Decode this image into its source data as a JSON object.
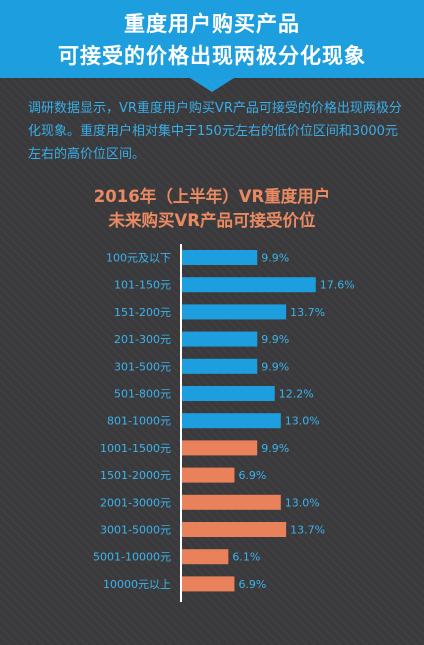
{
  "header": {
    "line1": "重度用户购买产品",
    "line2": "可接受的价格出现两极分化现象"
  },
  "intro": {
    "text": "调研数据显示，VR重度用户购买VR产品可接受的价格出现两极分化现象。重度用户相对集中于150元左右的低价位区间和3000元左右的高价位区间。"
  },
  "colors": {
    "header_bg": "#1d9fdf",
    "background": "#3a3a3c",
    "low_price": "#1d9fdf",
    "high_price": "#e9825a",
    "text_blue": "#3cb3ec",
    "title_orange": "#ea8a63"
  },
  "chart_data": {
    "type": "bar",
    "orientation": "horizontal",
    "title": "2016年（上半年）VR重度用户",
    "subtitle": "未来购买VR产品可接受价位",
    "categories": [
      "100元及以下",
      "101-150元",
      "151-200元",
      "201-300元",
      "301-500元",
      "501-800元",
      "801-1000元",
      "1001-1500元",
      "1501-2000元",
      "2001-3000元",
      "3001-5000元",
      "5001-10000元",
      "10000元以上"
    ],
    "values": [
      9.9,
      17.6,
      13.7,
      9.9,
      9.9,
      12.2,
      13.0,
      9.9,
      6.9,
      13.0,
      13.7,
      6.1,
      6.9
    ],
    "value_labels": [
      "9.9%",
      "17.6%",
      "13.7%",
      "9.9%",
      "9.9%",
      "12.2%",
      "13.0%",
      "9.9%",
      "6.9%",
      "13.0%",
      "13.7%",
      "6.1%",
      "6.9%"
    ],
    "bar_colors": [
      "#1d9fdf",
      "#1d9fdf",
      "#1d9fdf",
      "#1d9fdf",
      "#1d9fdf",
      "#1d9fdf",
      "#1d9fdf",
      "#e9825a",
      "#e9825a",
      "#e9825a",
      "#e9825a",
      "#e9825a",
      "#e9825a"
    ],
    "xlim": [
      0,
      18
    ],
    "grid": false,
    "legend": "none"
  }
}
